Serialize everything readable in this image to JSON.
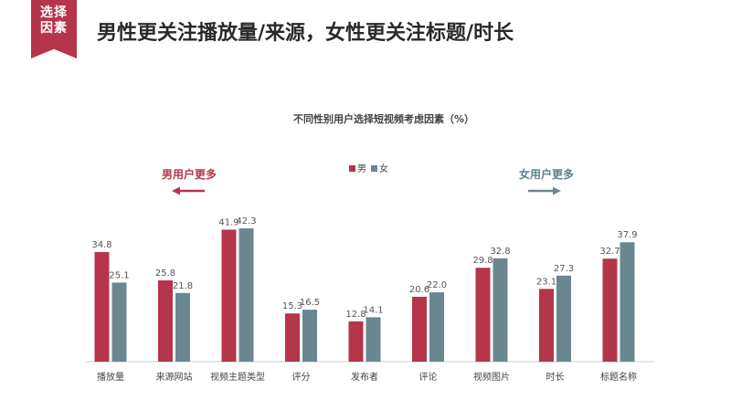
{
  "badge": {
    "line1": "选择",
    "line2": "因素"
  },
  "header": {
    "title": "男性更关注播放量/来源，女性更关注标题/时长"
  },
  "colors": {
    "male": "#b5354b",
    "female": "#6a8790",
    "male_text": "#b5354b",
    "female_text": "#5f7f8a"
  },
  "callouts": {
    "male": "男用户更多",
    "female": "女用户更多"
  },
  "chart_data": {
    "type": "bar",
    "title": "不同性别用户选择短视频考虑因素（%）",
    "categories": [
      "播放量",
      "来源网站",
      "视频主题类型",
      "评分",
      "发布者",
      "评论",
      "视频图片",
      "时长",
      "标题名称"
    ],
    "series": [
      {
        "name": "男",
        "values": [
          34.8,
          25.8,
          41.9,
          15.3,
          12.8,
          20.6,
          29.8,
          23.1,
          32.7
        ]
      },
      {
        "name": "女",
        "values": [
          25.1,
          21.8,
          42.3,
          16.5,
          14.1,
          22.0,
          32.8,
          27.3,
          37.9
        ]
      }
    ],
    "ylim": [
      0,
      46
    ],
    "grid": false,
    "legend": "top-center"
  }
}
